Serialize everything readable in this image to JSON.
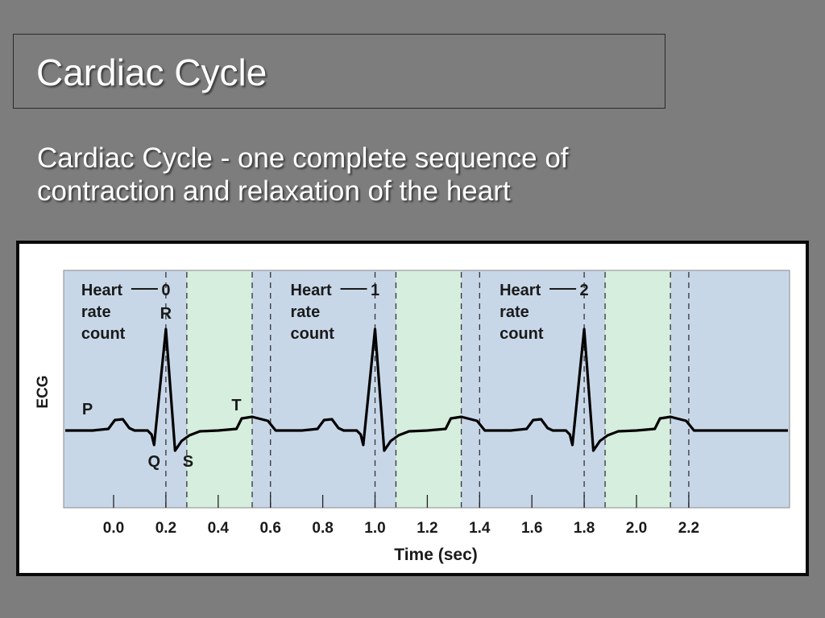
{
  "slide": {
    "title": "Cardiac Cycle",
    "subtitle": "Cardiac Cycle - one complete sequence of contraction and relaxation of the heart"
  },
  "colors": {
    "background": "#7d7d7d",
    "text": "#ffffff",
    "panel_blue": "#c8d7e8",
    "panel_green": "#d6eedd",
    "trace": "#000000"
  },
  "chart_data": {
    "type": "line",
    "xlabel": "Time (sec)",
    "ylabel": "ECG",
    "x_ticks": [
      "0.0",
      "0.2",
      "0.4",
      "0.6",
      "0.8",
      "1.0",
      "1.2",
      "1.4",
      "1.6",
      "1.8",
      "2.0",
      "2.2"
    ],
    "x_tick_values": [
      0.0,
      0.2,
      0.4,
      0.6,
      0.8,
      1.0,
      1.2,
      1.4,
      1.6,
      1.8,
      2.0,
      2.2
    ],
    "xlim": [
      -0.18,
      2.6
    ],
    "grid": false,
    "heart_rate_labels": [
      {
        "text": "Heart\nrate\ncount",
        "count": "0",
        "x": 0.2
      },
      {
        "text": "Heart\nrate\ncount",
        "count": "1",
        "x": 1.0
      },
      {
        "text": "Heart\nrate\ncount",
        "count": "2",
        "x": 1.8
      }
    ],
    "wave_labels": [
      "P",
      "R",
      "Q",
      "S",
      "T"
    ],
    "ventricular_systole_shaded": [
      [
        0.28,
        0.53
      ],
      [
        1.08,
        1.33
      ],
      [
        1.88,
        2.13
      ]
    ],
    "dashed_markers": [
      0.2,
      0.28,
      0.53,
      0.6,
      1.0,
      1.08,
      1.33,
      1.4,
      1.8,
      1.88,
      2.13,
      2.2
    ]
  }
}
